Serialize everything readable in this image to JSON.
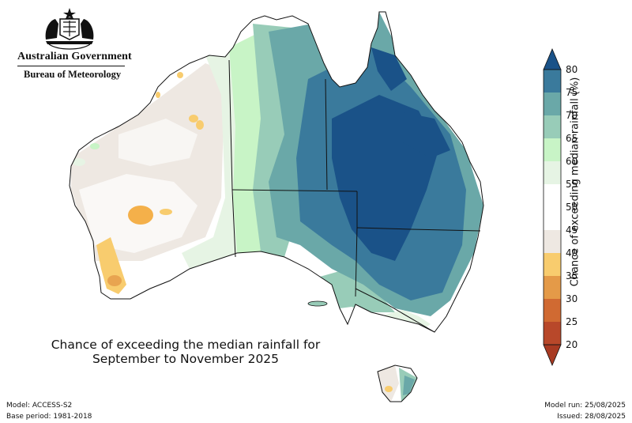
{
  "header": {
    "agency": "Australian Government",
    "bureau": "Bureau of Meteorology",
    "emblem_icon": "coat-of-arms-icon"
  },
  "map": {
    "title_line1": "Chance of exceeding the median rainfall for",
    "title_line2": "September to November 2025",
    "region": "Australia",
    "colors": {
      "dark_orange": "#f4b04a",
      "orange": "#f8cc6e",
      "beige": "#eee8e2",
      "white": "#ffffff",
      "pale_green": "#e6f4e4",
      "light_green": "#c8f4c6",
      "green": "#98ccb8",
      "teal": "#6aa8a8",
      "blue": "#3a7a9c",
      "dark_blue": "#1a5288"
    }
  },
  "colorbar": {
    "label": "Chance of exceeding median rainfall (%)",
    "ticks": [
      "80",
      "75",
      "70",
      "65",
      "60",
      "55",
      "50",
      "45",
      "40",
      "35",
      "30",
      "25",
      "20"
    ],
    "colors": [
      "#1a5288",
      "#3a7a9c",
      "#6aa8a8",
      "#98ccb8",
      "#c8f4c6",
      "#e6f4e4",
      "#ffffff",
      "#ffffff",
      "#eee8e2",
      "#f8cc6e",
      "#e49a48",
      "#d06a32",
      "#b8482a",
      "#a83a22"
    ]
  },
  "footer": {
    "model": "Model: ACCESS-S2",
    "base_period": "Base period: 1981-2018",
    "model_run": "Model run: 25/08/2025",
    "issued": "Issued: 28/08/2025"
  }
}
